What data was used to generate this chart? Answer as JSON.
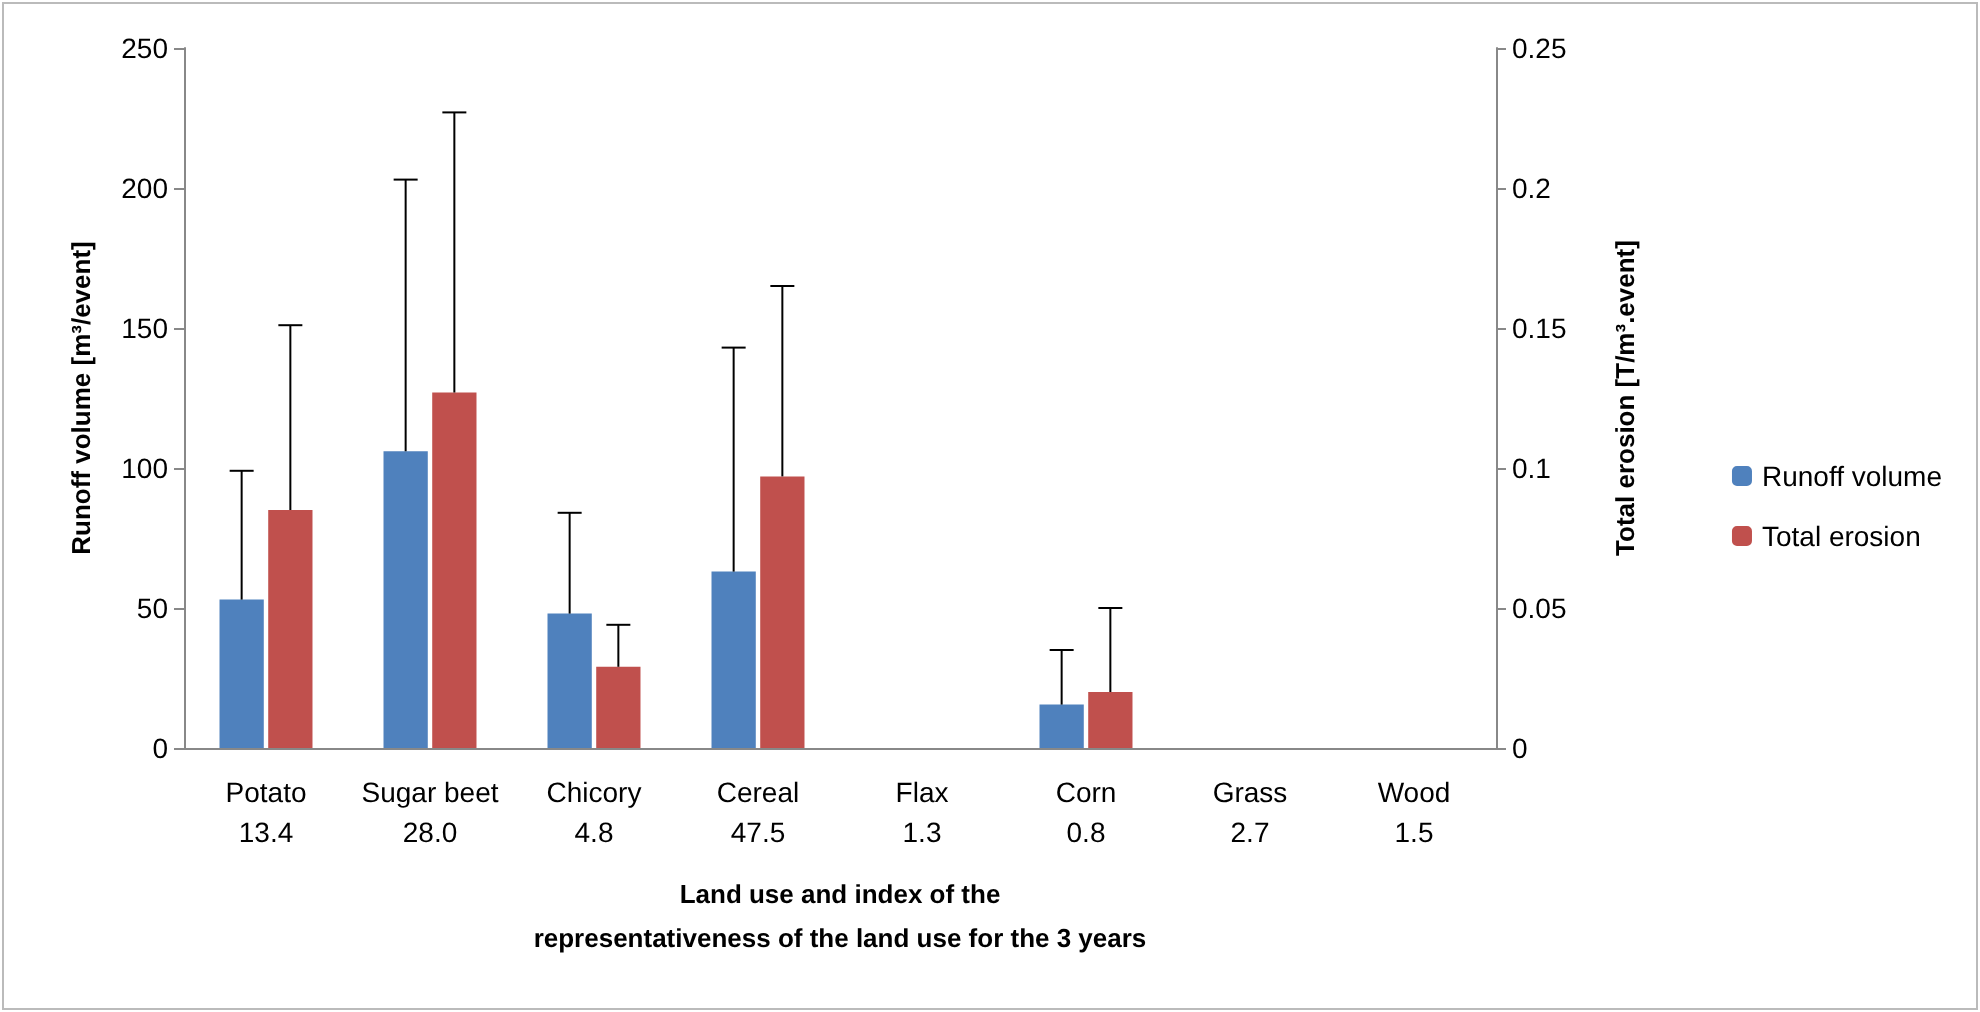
{
  "chart_data": {
    "type": "bar",
    "xlabel": "Land use and index of the\nrepresentativeness of the land use for the 3 years",
    "ylabel": "Runoff volume [m³/event]",
    "y2label": "Total erosion [T/m³.event]",
    "categories": [
      "Potato\n13.4",
      "Sugar beet\n28.0",
      "Chicory\n4.8",
      "Cereal\n47.5",
      "Flax\n1.3",
      "Corn\n0.8",
      "Grass\n2.7",
      "Wood\n1.5"
    ],
    "series": [
      {
        "name": "Runoff volume",
        "color": "#4f81bd",
        "values": [
          53,
          106,
          48,
          63,
          0,
          15.5,
          0,
          0
        ],
        "errors": [
          [
            53,
            99
          ],
          [
            106,
            203
          ],
          [
            48,
            84
          ],
          [
            63,
            143
          ],
          null,
          [
            15.5,
            35
          ],
          null,
          null
        ]
      },
      {
        "name": "Total erosion",
        "color": "#c0504d",
        "axis": "y2",
        "values": [
          0.085,
          0.127,
          0.029,
          0.097,
          0,
          0.02,
          0,
          0
        ],
        "errors": [
          [
            0.085,
            0.151
          ],
          [
            0.127,
            0.227
          ],
          [
            0.029,
            0.044
          ],
          [
            0.097,
            0.165
          ],
          null,
          [
            0.02,
            0.05
          ],
          null,
          null
        ]
      }
    ],
    "ylim": [
      0,
      250
    ],
    "yticks": [
      0,
      50,
      100,
      150,
      200,
      250
    ],
    "y2lim": [
      0,
      0.25
    ],
    "y2ticks": [
      0,
      0.05,
      0.1,
      0.15,
      0.2,
      0.25
    ],
    "grid": false,
    "legend": "right"
  }
}
